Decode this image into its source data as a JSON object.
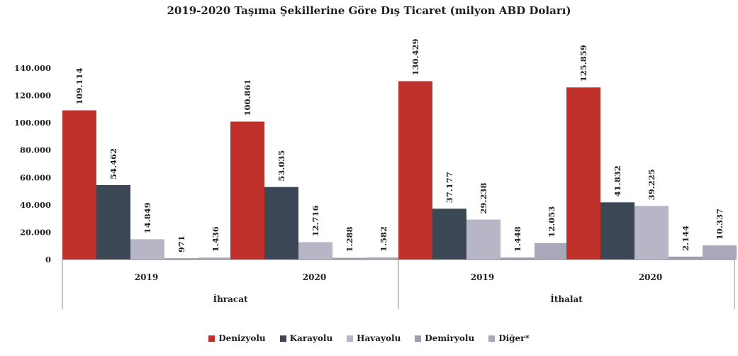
{
  "chart_data": {
    "type": "bar",
    "title": "2019-2020 Taşıma Şekillerine Göre Dış Ticaret (milyon ABD Doları)",
    "xlabel": "",
    "ylabel": "",
    "ylim": [
      0,
      140000
    ],
    "yticks": [
      "0",
      "20.000",
      "40.000",
      "60.000",
      "80.000",
      "100.000",
      "120.000",
      "140.000"
    ],
    "grid": false,
    "legend_position": "bottom",
    "groups": [
      {
        "label": "İhracat",
        "categories": [
          "2019",
          "2020"
        ]
      },
      {
        "label": "İthalat",
        "categories": [
          "2019",
          "2020"
        ]
      }
    ],
    "categories": [
      "2019",
      "2020",
      "2019",
      "2020"
    ],
    "series": [
      {
        "name": "Denizyolu",
        "color": "#c0302a",
        "values": [
          109114,
          100861,
          130429,
          125859
        ],
        "labels": [
          "109.114",
          "100.861",
          "130.429",
          "125.859"
        ]
      },
      {
        "name": "Karayolu",
        "color": "#3c4756",
        "values": [
          54462,
          53035,
          37177,
          41832
        ],
        "labels": [
          "54.462",
          "53.035",
          "37.177",
          "41.832"
        ]
      },
      {
        "name": "Havayolu",
        "color": "#b6b6c6",
        "values": [
          14849,
          12716,
          29238,
          39225
        ],
        "labels": [
          "14.849",
          "12.716",
          "29.238",
          "39.225"
        ]
      },
      {
        "name": "Demiryolu",
        "color": "#9d9dae",
        "values": [
          971,
          1288,
          1448,
          2144
        ],
        "labels": [
          "971",
          "1.288",
          "1.448",
          "2.144"
        ]
      },
      {
        "name": "Diğer*",
        "color": "#a8a8b8",
        "values": [
          1436,
          1582,
          12053,
          10337
        ],
        "labels": [
          "1.436",
          "1.582",
          "12.053",
          "10.337"
        ]
      }
    ]
  }
}
